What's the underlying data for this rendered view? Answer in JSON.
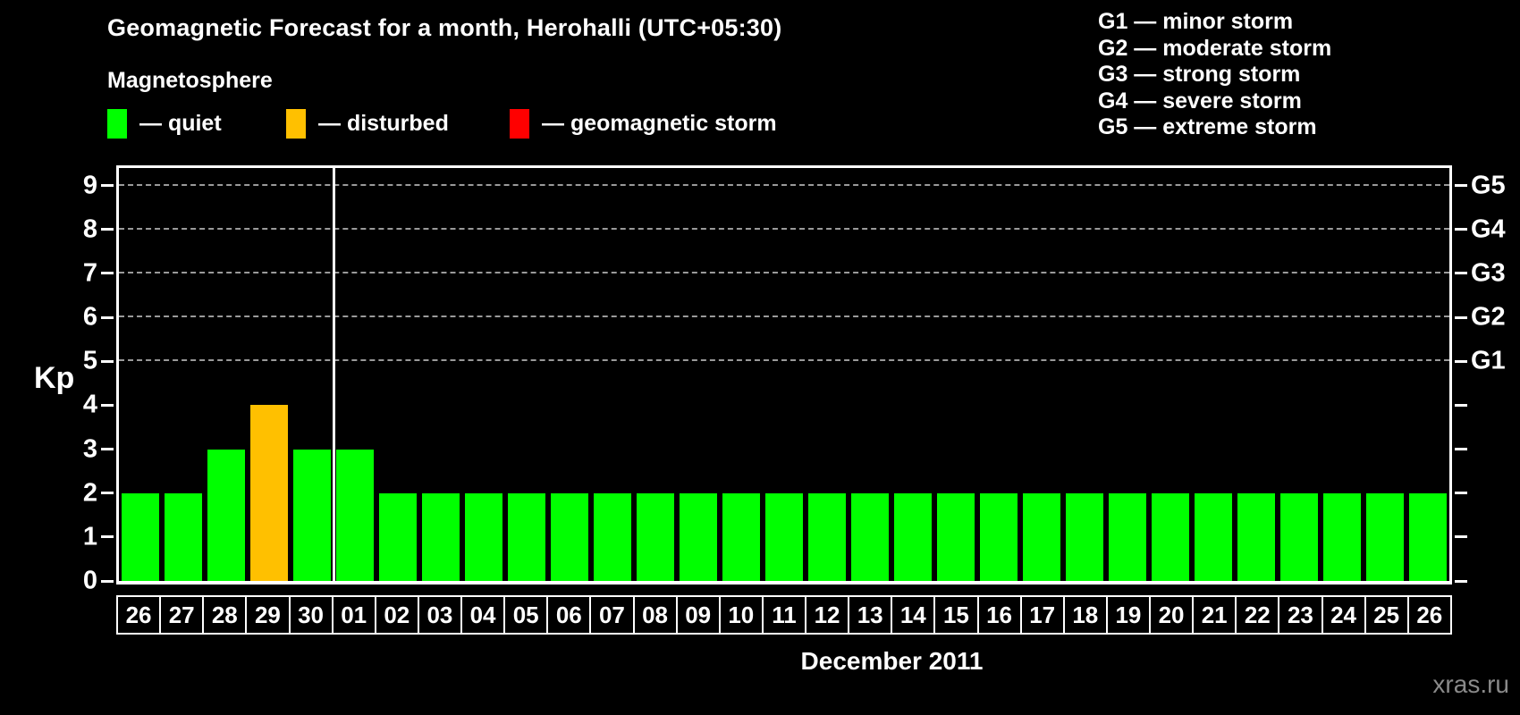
{
  "title": "Geomagnetic Forecast for a month, Herohalli (UTC+05:30)",
  "watermark": "xras.ru",
  "legend": {
    "heading": "Magnetosphere",
    "items": [
      {
        "name": "quiet",
        "label": "— quiet",
        "color": "#00ff00"
      },
      {
        "name": "disturbed",
        "label": "— disturbed",
        "color": "#ffc000"
      },
      {
        "name": "storm",
        "label": "— geomagnetic storm",
        "color": "#ff0000"
      }
    ]
  },
  "storm_scale": [
    "G1 — minor storm",
    "G2 — moderate storm",
    "G3 — strong storm",
    "G4 — severe storm",
    "G5 — extreme storm"
  ],
  "chart_data": {
    "type": "bar",
    "title": "Geomagnetic Forecast for a month, Herohalli (UTC+05:30)",
    "xlabel": "December 2011",
    "ylabel": "Kp",
    "ylim": [
      0,
      9.4
    ],
    "yticks": [
      0,
      1,
      2,
      3,
      4,
      5,
      6,
      7,
      8,
      9
    ],
    "gridlines_at": [
      5,
      6,
      7,
      8,
      9
    ],
    "grid": "dashed-horizontal",
    "legend_position": "top",
    "right_axis": [
      {
        "kp": 5,
        "label": "G1"
      },
      {
        "kp": 6,
        "label": "G2"
      },
      {
        "kp": 7,
        "label": "G3"
      },
      {
        "kp": 8,
        "label": "G4"
      },
      {
        "kp": 9,
        "label": "G5"
      }
    ],
    "categories": [
      "26",
      "27",
      "28",
      "29",
      "30",
      "01",
      "02",
      "03",
      "04",
      "05",
      "06",
      "07",
      "08",
      "09",
      "10",
      "11",
      "12",
      "13",
      "14",
      "15",
      "16",
      "17",
      "18",
      "19",
      "20",
      "21",
      "22",
      "23",
      "24",
      "25",
      "26"
    ],
    "values": [
      2,
      2,
      3,
      4,
      3,
      3,
      2,
      2,
      2,
      2,
      2,
      2,
      2,
      2,
      2,
      2,
      2,
      2,
      2,
      2,
      2,
      2,
      2,
      2,
      2,
      2,
      2,
      2,
      2,
      2,
      2
    ],
    "statuses": [
      "quiet",
      "quiet",
      "quiet",
      "disturbed",
      "quiet",
      "quiet",
      "quiet",
      "quiet",
      "quiet",
      "quiet",
      "quiet",
      "quiet",
      "quiet",
      "quiet",
      "quiet",
      "quiet",
      "quiet",
      "quiet",
      "quiet",
      "quiet",
      "quiet",
      "quiet",
      "quiet",
      "quiet",
      "quiet",
      "quiet",
      "quiet",
      "quiet",
      "quiet",
      "quiet",
      "quiet"
    ],
    "colors_by_status": {
      "quiet": "#00ff00",
      "disturbed": "#ffc000",
      "storm": "#ff0000"
    },
    "month_separator_after_index": 4
  }
}
